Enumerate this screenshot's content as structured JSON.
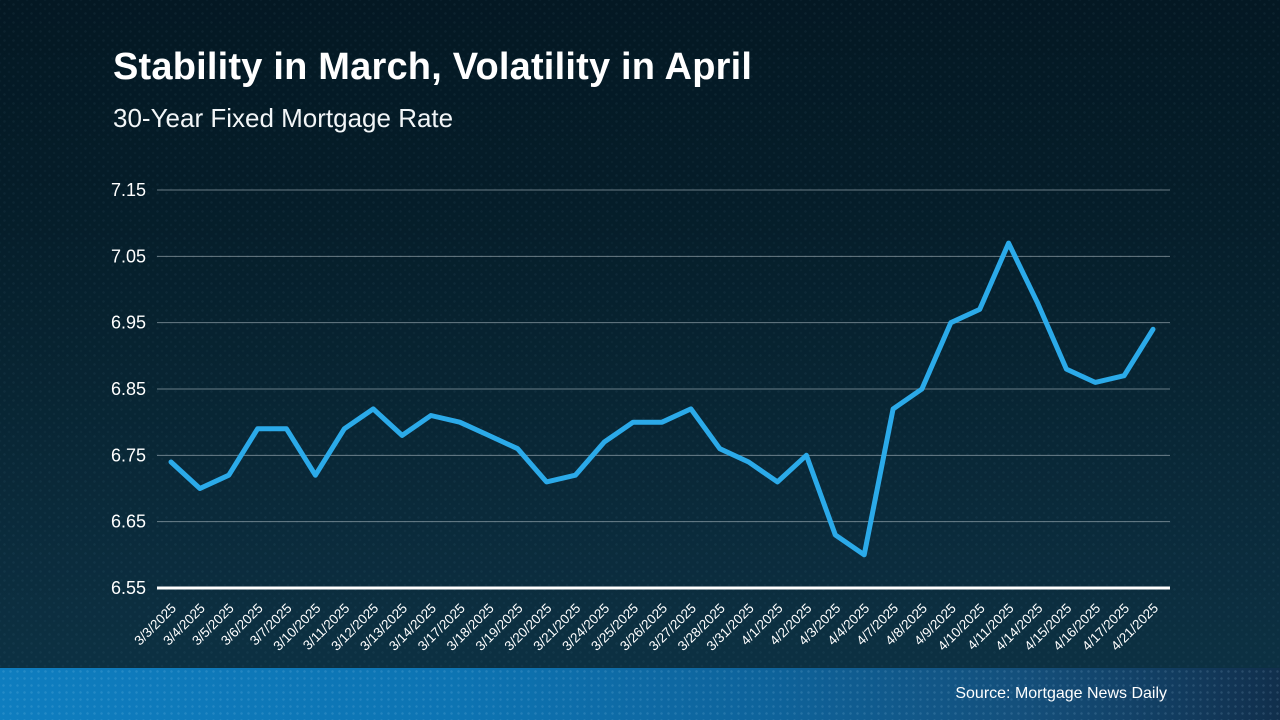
{
  "header": {
    "title": "Stability in March, Volatility in April",
    "subtitle": "30-Year Fixed Mortgage Rate"
  },
  "footer": {
    "source": "Source: Mortgage News Daily"
  },
  "colors": {
    "accent_line": "#2baae9",
    "gridline": "#b9c6cd",
    "axis_baseline": "#ffffff",
    "text": "#ffffff",
    "background_top": "#041823",
    "background_bottom": "#0d3345",
    "footer_band_left": "#0e7dbf",
    "footer_band_right": "#112f4c"
  },
  "chart_data": {
    "type": "line",
    "title": "30-Year Fixed Mortgage Rate",
    "x": [
      "3/3/2025",
      "3/4/2025",
      "3/5/2025",
      "3/6/2025",
      "3/7/2025",
      "3/10/2025",
      "3/11/2025",
      "3/12/2025",
      "3/13/2025",
      "3/14/2025",
      "3/17/2025",
      "3/18/2025",
      "3/19/2025",
      "3/20/2025",
      "3/21/2025",
      "3/24/2025",
      "3/25/2025",
      "3/26/2025",
      "3/27/2025",
      "3/28/2025",
      "3/31/2025",
      "4/1/2025",
      "4/2/2025",
      "4/3/2025",
      "4/4/2025",
      "4/7/2025",
      "4/8/2025",
      "4/9/2025",
      "4/10/2025",
      "4/11/2025",
      "4/14/2025",
      "4/15/2025",
      "4/16/2025",
      "4/17/2025",
      "4/21/2025"
    ],
    "values": [
      6.74,
      6.7,
      6.72,
      6.79,
      6.79,
      6.72,
      6.79,
      6.82,
      6.78,
      6.81,
      6.8,
      6.78,
      6.76,
      6.71,
      6.72,
      6.77,
      6.8,
      6.8,
      6.82,
      6.76,
      6.74,
      6.71,
      6.75,
      6.63,
      6.6,
      6.82,
      6.85,
      6.95,
      6.97,
      7.07,
      6.98,
      6.88,
      6.86,
      6.87,
      6.94
    ],
    "ylim": [
      6.55,
      7.15
    ],
    "yticks": [
      "7.15",
      "7.05",
      "6.95",
      "6.85",
      "6.75",
      "6.65",
      "6.55"
    ],
    "grid": true,
    "legend": false,
    "line_color": "#2baae9",
    "xlabel": "",
    "ylabel": ""
  }
}
